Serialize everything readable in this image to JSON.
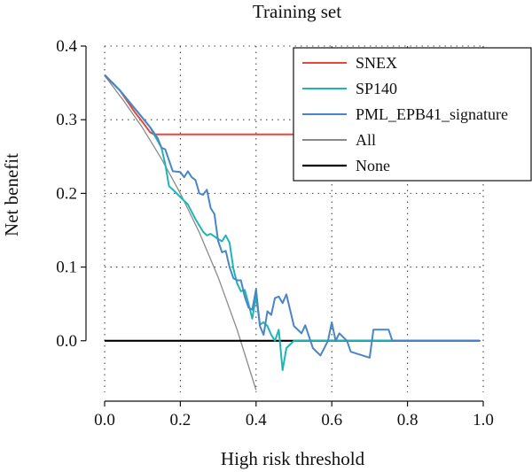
{
  "chart_data": {
    "type": "line",
    "title": "Training set",
    "xlabel": "High risk threshold",
    "ylabel": "Net benefit",
    "xlim": [
      0,
      1.0
    ],
    "ylim": [
      -0.07,
      0.4
    ],
    "xticks": [
      "0.0",
      "0.2",
      "0.4",
      "0.6",
      "0.8",
      "1.0"
    ],
    "xtick_values": [
      0,
      0.2,
      0.4,
      0.6,
      0.8,
      1.0
    ],
    "yticks": [
      "0.0",
      "0.1",
      "0.2",
      "0.3",
      "0.4"
    ],
    "ytick_values": [
      0,
      0.1,
      0.2,
      0.3,
      0.4
    ],
    "grid": "dotted",
    "legend_position": "top-right",
    "series": [
      {
        "name": "SNEX",
        "color": "#e8473c",
        "points": [
          [
            0,
            0.36
          ],
          [
            0.04,
            0.34
          ],
          [
            0.08,
            0.31
          ],
          [
            0.1,
            0.297
          ],
          [
            0.12,
            0.283
          ],
          [
            0.13,
            0.28
          ],
          [
            0.5,
            0.28
          ],
          [
            0.55,
            0.28
          ]
        ]
      },
      {
        "name": "SP140",
        "color": "#1fb5b5",
        "points": [
          [
            0,
            0.361
          ],
          [
            0.04,
            0.34
          ],
          [
            0.08,
            0.315
          ],
          [
            0.12,
            0.29
          ],
          [
            0.15,
            0.262
          ],
          [
            0.16,
            0.24
          ],
          [
            0.17,
            0.21
          ],
          [
            0.18,
            0.205
          ],
          [
            0.2,
            0.195
          ],
          [
            0.22,
            0.185
          ],
          [
            0.24,
            0.165
          ],
          [
            0.26,
            0.148
          ],
          [
            0.27,
            0.143
          ],
          [
            0.28,
            0.145
          ],
          [
            0.3,
            0.138
          ],
          [
            0.31,
            0.135
          ],
          [
            0.32,
            0.143
          ],
          [
            0.33,
            0.133
          ],
          [
            0.34,
            0.098
          ],
          [
            0.35,
            0.078
          ],
          [
            0.36,
            0.067
          ],
          [
            0.37,
            0.069
          ],
          [
            0.38,
            0.05
          ],
          [
            0.39,
            0.03
          ],
          [
            0.4,
            0.06
          ],
          [
            0.41,
            0.022
          ],
          [
            0.42,
            0.025
          ],
          [
            0.43,
            0.02
          ],
          [
            0.44,
            0.008
          ],
          [
            0.45,
            0.0
          ],
          [
            0.46,
            0.015
          ],
          [
            0.47,
            -0.04
          ],
          [
            0.48,
            -0.01
          ],
          [
            0.5,
            0.0
          ],
          [
            0.6,
            0.0
          ],
          [
            0.7,
            0.0
          ],
          [
            0.8,
            0.0
          ],
          [
            0.9,
            0.0
          ],
          [
            0.99,
            0.0
          ]
        ]
      },
      {
        "name": "PML_EPB41_signature",
        "color": "#4a86c6",
        "points": [
          [
            0,
            0.361
          ],
          [
            0.04,
            0.34
          ],
          [
            0.08,
            0.315
          ],
          [
            0.12,
            0.29
          ],
          [
            0.14,
            0.275
          ],
          [
            0.15,
            0.262
          ],
          [
            0.16,
            0.26
          ],
          [
            0.17,
            0.245
          ],
          [
            0.18,
            0.23
          ],
          [
            0.2,
            0.229
          ],
          [
            0.21,
            0.222
          ],
          [
            0.22,
            0.23
          ],
          [
            0.23,
            0.222
          ],
          [
            0.24,
            0.218
          ],
          [
            0.25,
            0.2
          ],
          [
            0.26,
            0.198
          ],
          [
            0.27,
            0.205
          ],
          [
            0.28,
            0.18
          ],
          [
            0.29,
            0.172
          ],
          [
            0.3,
            0.135
          ],
          [
            0.31,
            0.12
          ],
          [
            0.32,
            0.122
          ],
          [
            0.33,
            0.1
          ],
          [
            0.34,
            0.085
          ],
          [
            0.35,
            0.082
          ],
          [
            0.36,
            0.082
          ],
          [
            0.37,
            0.06
          ],
          [
            0.38,
            0.045
          ],
          [
            0.39,
            0.042
          ],
          [
            0.4,
            0.07
          ],
          [
            0.41,
            0.02
          ],
          [
            0.42,
            0.008
          ],
          [
            0.43,
            0.04
          ],
          [
            0.44,
            0.035
          ],
          [
            0.45,
            0.058
          ],
          [
            0.46,
            0.06
          ],
          [
            0.47,
            0.051
          ],
          [
            0.48,
            0.063
          ],
          [
            0.5,
            0.02
          ],
          [
            0.52,
            0.01
          ],
          [
            0.53,
            0.021
          ],
          [
            0.55,
            -0.01
          ],
          [
            0.57,
            -0.02
          ],
          [
            0.58,
            -0.01
          ],
          [
            0.59,
            0.0
          ],
          [
            0.6,
            0.025
          ],
          [
            0.61,
            0.0
          ],
          [
            0.62,
            0.01
          ],
          [
            0.64,
            0.0
          ],
          [
            0.65,
            -0.015
          ],
          [
            0.7,
            -0.023
          ],
          [
            0.71,
            0.015
          ],
          [
            0.75,
            0.015
          ],
          [
            0.76,
            0.0
          ],
          [
            0.8,
            0.0
          ],
          [
            0.9,
            0.0
          ],
          [
            0.99,
            0.0
          ]
        ]
      },
      {
        "name": "All",
        "color": "#8a8a8a",
        "points": [
          [
            0,
            0.36
          ],
          [
            0.05,
            0.326
          ],
          [
            0.1,
            0.289
          ],
          [
            0.15,
            0.247
          ],
          [
            0.2,
            0.2
          ],
          [
            0.25,
            0.147
          ],
          [
            0.3,
            0.086
          ],
          [
            0.35,
            0.015
          ],
          [
            0.4,
            -0.067
          ]
        ]
      },
      {
        "name": "None",
        "color": "#000000",
        "points": [
          [
            0,
            0
          ],
          [
            0.99,
            0
          ]
        ]
      }
    ]
  }
}
